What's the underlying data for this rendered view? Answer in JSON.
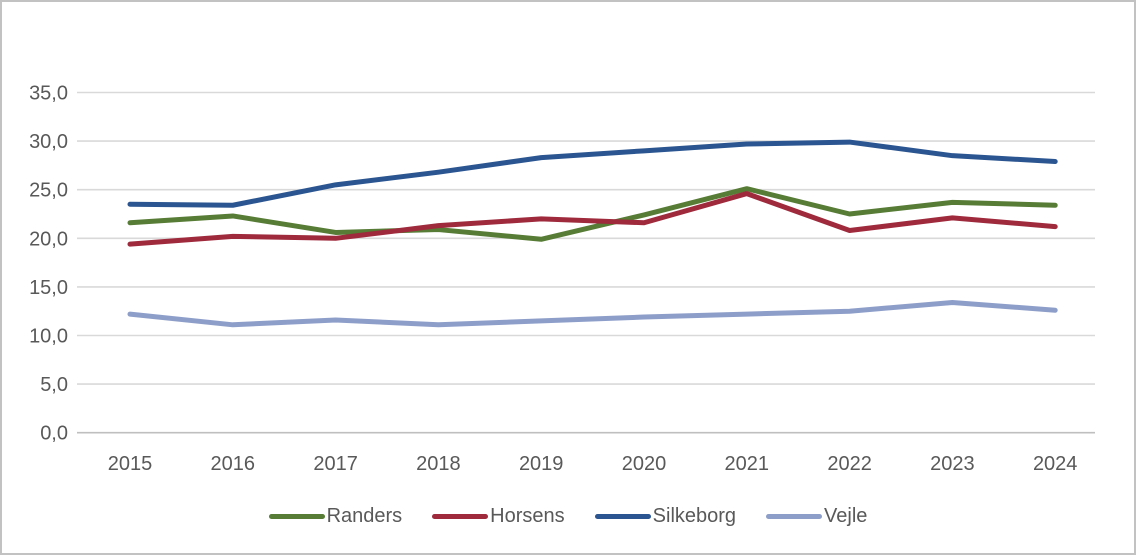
{
  "colors": {
    "axis_text": "#595959",
    "gridline": "#d9d9d9",
    "zero_line": "#bfbfbf",
    "frame_border": "#c2c2c2",
    "background": "#ffffff"
  },
  "chart_data": {
    "type": "line",
    "title": "",
    "xlabel": "",
    "ylabel": "",
    "grid": true,
    "legend_position": "bottom",
    "decimal_style": "comma",
    "ylim": [
      0,
      35
    ],
    "ytick_step": 5,
    "ytick_labels": [
      "0,0",
      "5,0",
      "10,0",
      "15,0",
      "20,0",
      "25,0",
      "30,0",
      "35,0"
    ],
    "categories": [
      "2015",
      "2016",
      "2017",
      "2018",
      "2019",
      "2020",
      "2021",
      "2022",
      "2023",
      "2024"
    ],
    "series": [
      {
        "name": "Randers",
        "color": "#577c35",
        "values": [
          21.6,
          22.3,
          20.6,
          20.9,
          19.9,
          22.4,
          25.1,
          22.5,
          23.7,
          23.4
        ]
      },
      {
        "name": "Horsens",
        "color": "#9e2a3c",
        "values": [
          19.4,
          20.2,
          20.0,
          21.3,
          22.0,
          21.6,
          24.6,
          20.8,
          22.1,
          21.2
        ]
      },
      {
        "name": "Silkeborg",
        "color": "#2a5590",
        "values": [
          23.5,
          23.4,
          25.5,
          26.8,
          28.3,
          29.0,
          29.7,
          29.9,
          28.5,
          27.9
        ]
      },
      {
        "name": "Vejle",
        "color": "#8d9ec9",
        "values": [
          12.2,
          11.1,
          11.6,
          11.1,
          11.5,
          11.9,
          12.2,
          12.5,
          13.4,
          12.6
        ]
      }
    ]
  }
}
